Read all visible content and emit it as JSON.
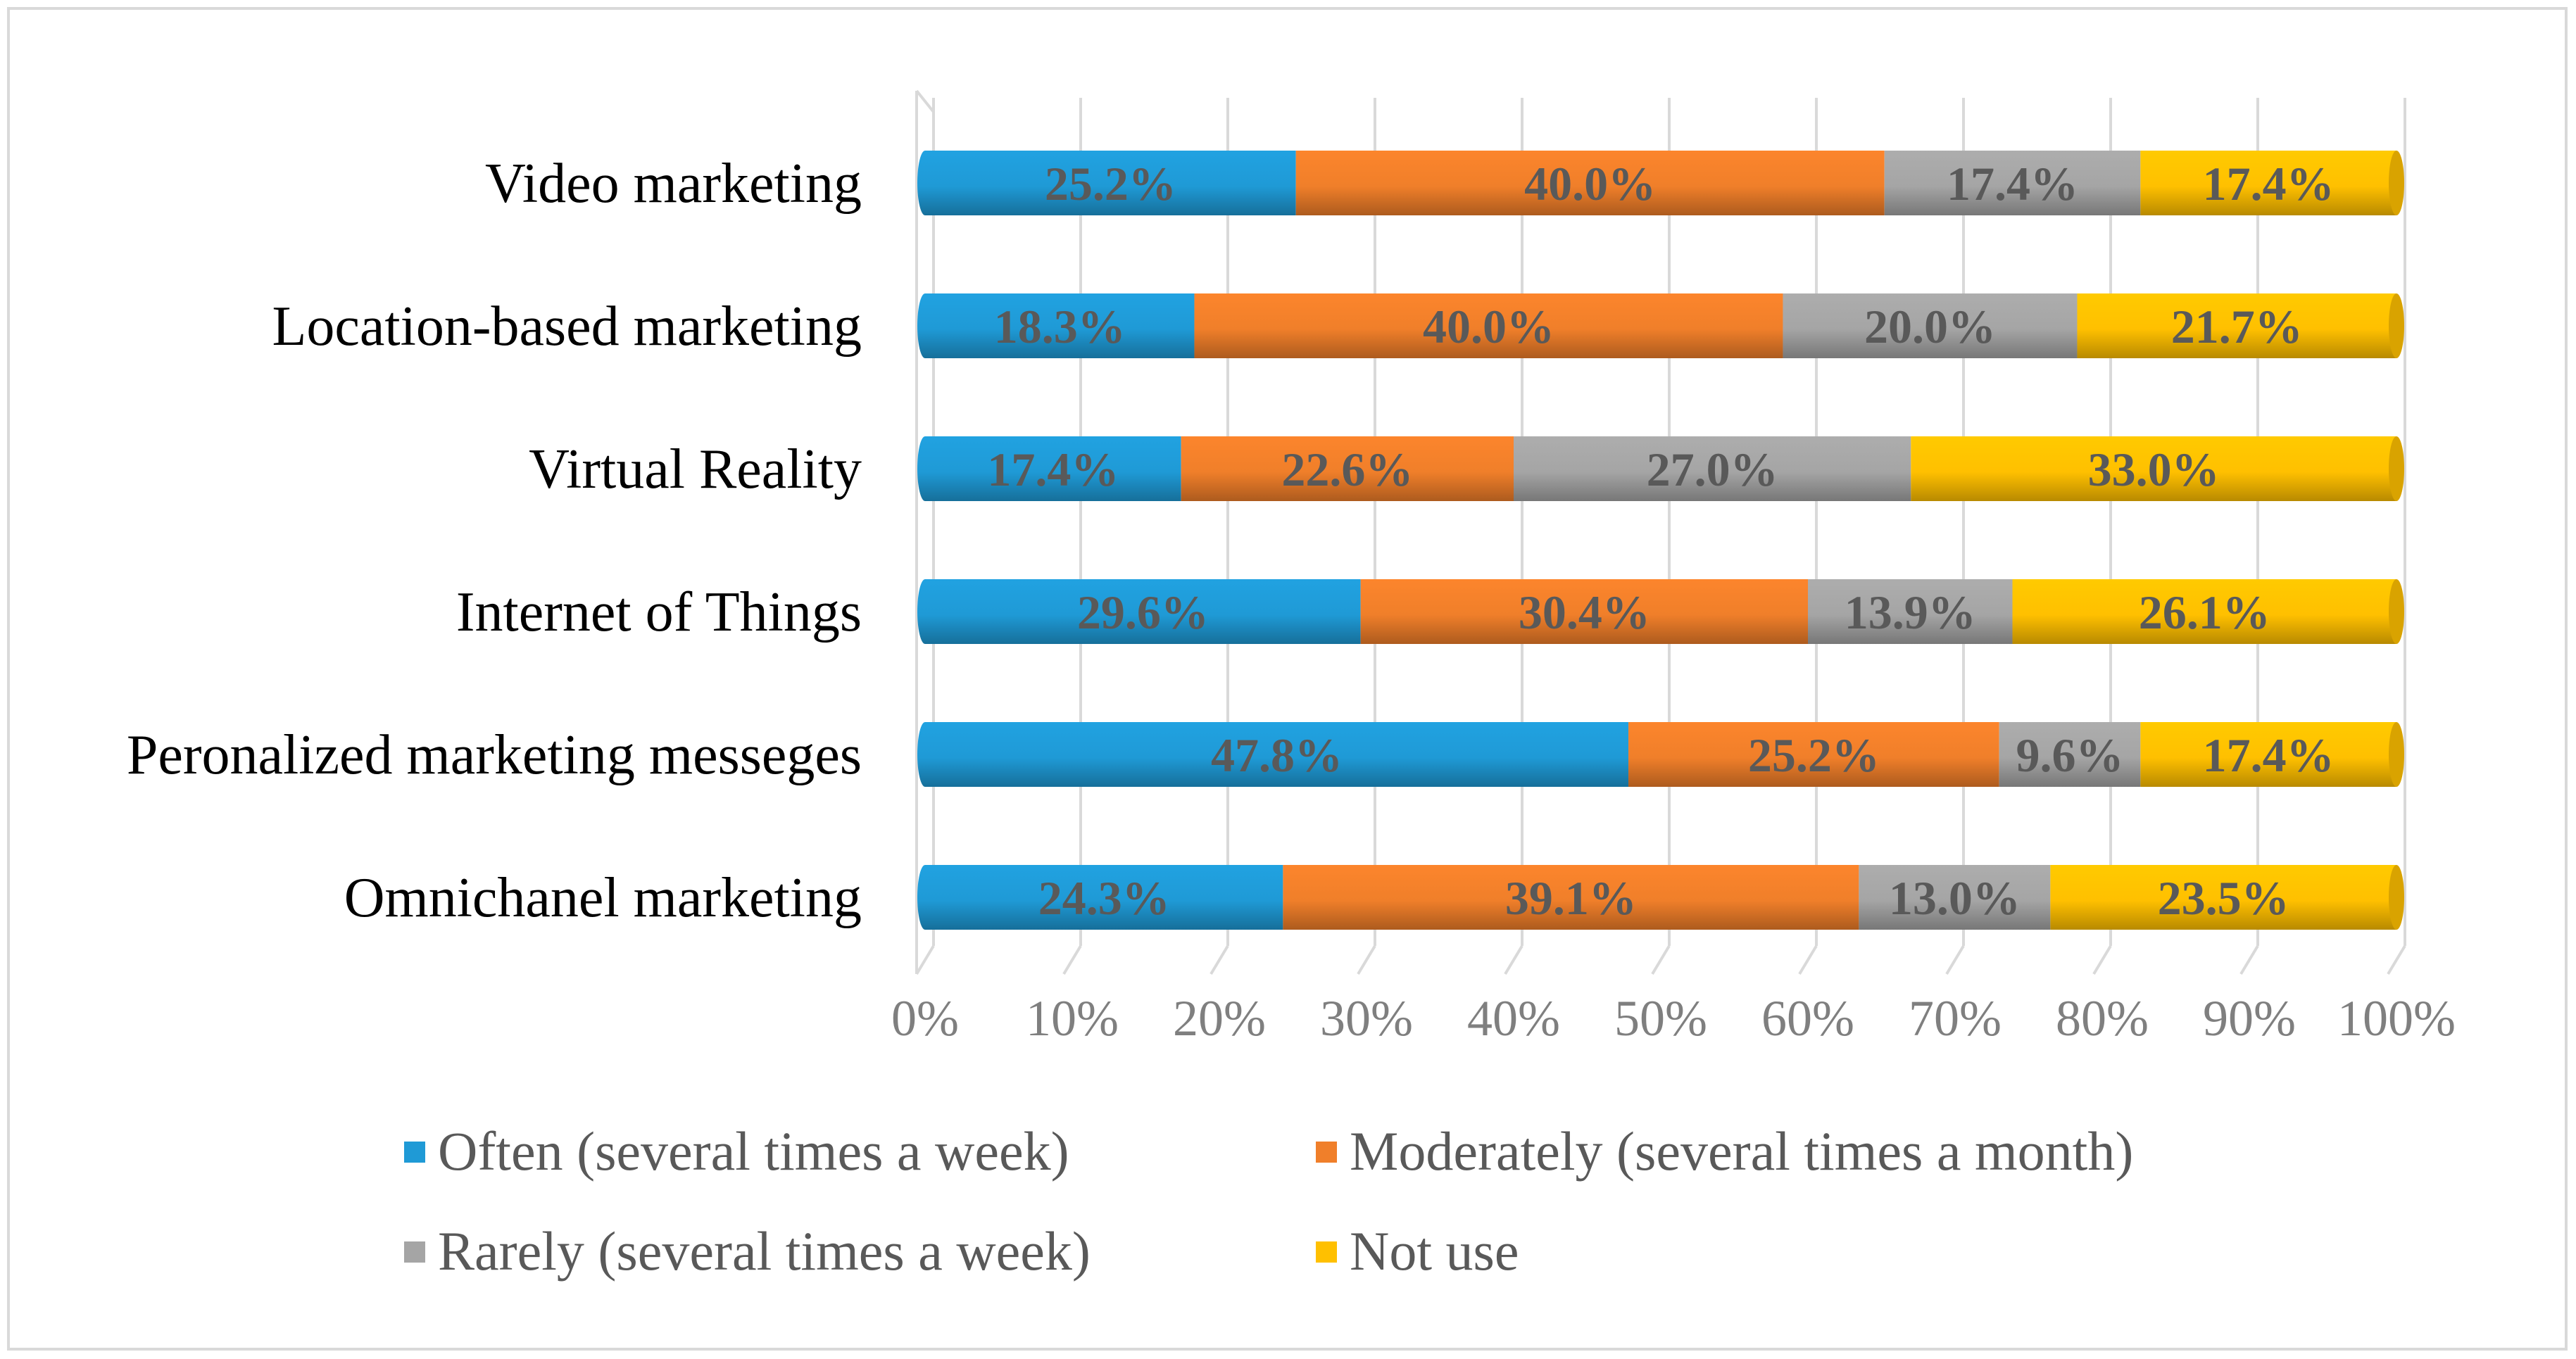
{
  "chart_data": {
    "type": "bar",
    "orientation": "horizontal",
    "stacked": true,
    "percent_stacked": true,
    "title": "",
    "xlabel": "",
    "ylabel": "",
    "xlim": [
      0,
      100
    ],
    "grid": true,
    "legend_position": "bottom",
    "x_ticks": [
      "0%",
      "10%",
      "20%",
      "30%",
      "40%",
      "50%",
      "60%",
      "70%",
      "80%",
      "90%",
      "100%"
    ],
    "categories": [
      "Video marketing",
      "Location-based marketing",
      "Virtual Reality",
      "Internet of Things",
      "Peronalized marketing messeges",
      "Omnichanel marketing"
    ],
    "series": [
      {
        "name": "Often (several times a week)",
        "color": "#1f9ad6",
        "values": [
          25.2,
          18.3,
          17.4,
          29.6,
          47.8,
          24.3
        ],
        "labels": [
          "25.2%",
          "18.3%",
          "17.4%",
          "29.6%",
          "47.8%",
          "24.3%"
        ]
      },
      {
        "name": "Moderately  (several times a month)",
        "color": "#f07f2a",
        "values": [
          40.0,
          40.0,
          22.6,
          30.4,
          25.2,
          39.1
        ],
        "labels": [
          "40.0%",
          "40.0%",
          "22.6%",
          "30.4%",
          "25.2%",
          "39.1%"
        ]
      },
      {
        "name": "Rarely (several times a week)",
        "color": "#a5a5a5",
        "values": [
          17.4,
          20.0,
          27.0,
          13.9,
          9.6,
          13.0
        ],
        "labels": [
          "17.4%",
          "20.0%",
          "27.0%",
          "13.9%",
          "9.6%",
          "13.0%"
        ]
      },
      {
        "name": "Not use",
        "color": "#ffc000",
        "values": [
          17.4,
          21.7,
          33.0,
          26.1,
          17.4,
          23.5
        ],
        "labels": [
          "17.4%",
          "21.7%",
          "33.0%",
          "26.1%",
          "17.4%",
          "23.5%"
        ]
      }
    ]
  }
}
